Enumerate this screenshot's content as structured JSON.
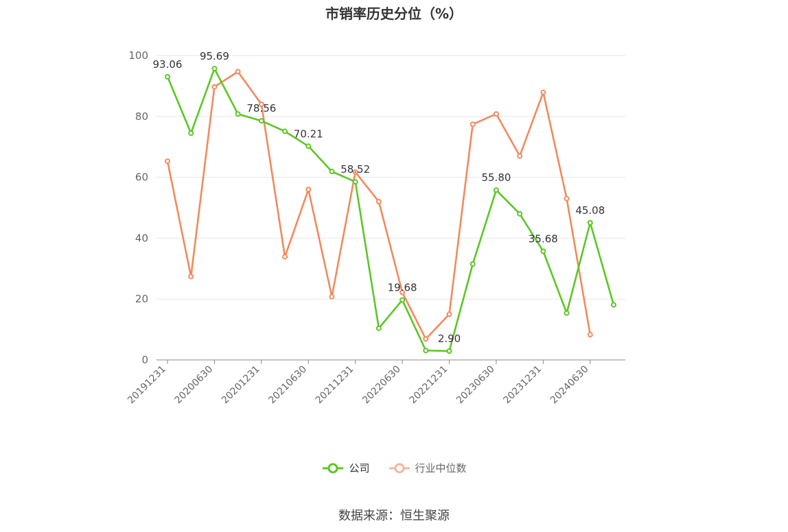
{
  "colors": {
    "company": "#5cc624",
    "industry": "#f08a5d",
    "industry_legend": "#f5b89c",
    "grid": "#e6e6e6",
    "axis": "#888888"
  },
  "footer": {
    "source": "数据来源：恒生聚源"
  },
  "chart_data": {
    "type": "line",
    "title": "市销率历史分位（%）",
    "ylim": [
      0,
      100
    ],
    "yticks": [
      0,
      20,
      40,
      60,
      80,
      100
    ],
    "grid": true,
    "legend_position": "bottom-center",
    "x": [
      "20191231",
      "20200331",
      "20200630",
      "20200930",
      "20201231",
      "20210331",
      "20210630",
      "20210930",
      "20211231",
      "20220331",
      "20220630",
      "20220930",
      "20221231",
      "20230331",
      "20230630",
      "20230930",
      "20231231",
      "20240331",
      "20240630",
      "20240930"
    ],
    "xtick_labels": [
      "20191231",
      "20200630",
      "20201231",
      "20210630",
      "20211231",
      "20220630",
      "20221231",
      "20230630",
      "20231231",
      "20240630"
    ],
    "series": [
      {
        "name": "公司",
        "values": [
          93.06,
          74.5,
          95.69,
          80.8,
          78.56,
          75.1,
          70.21,
          61.9,
          58.52,
          10.4,
          19.68,
          3.1,
          2.9,
          31.5,
          55.8,
          48.0,
          35.68,
          15.4,
          45.08,
          18.1
        ],
        "labeled_indices": [
          0,
          2,
          4,
          6,
          8,
          10,
          12,
          14,
          16,
          18
        ],
        "labels": [
          "93.06",
          "95.69",
          "78.56",
          "70.21",
          "58.52",
          "19.68",
          "2.90",
          "55.80",
          "35.68",
          "45.08"
        ]
      },
      {
        "name": "行业中位数",
        "values": [
          65.3,
          27.4,
          89.7,
          94.7,
          84.0,
          33.9,
          56.0,
          20.8,
          61.7,
          52.0,
          22.2,
          6.9,
          15.0,
          77.4,
          80.8,
          67.0,
          87.9,
          53.0,
          8.3,
          null
        ]
      }
    ]
  }
}
